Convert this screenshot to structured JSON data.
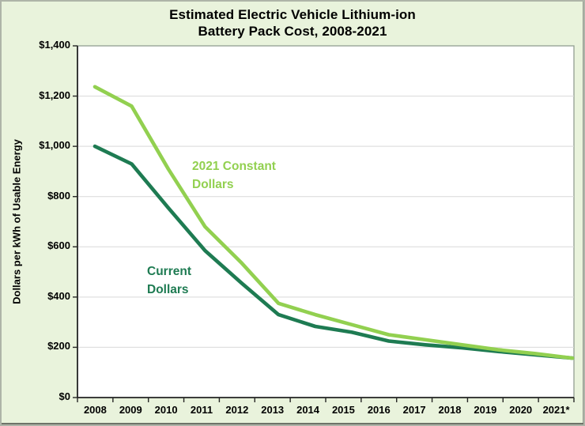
{
  "chart": {
    "title_line1": "Estimated Electric Vehicle Lithium-ion",
    "title_line2": "Battery Pack Cost, 2008-2021",
    "y_axis_label": "Dollars per kWh of Usable Energy"
  },
  "series_labels": {
    "constant": {
      "line1": "2021 Constant",
      "line2": "Dollars"
    },
    "current": {
      "line1": "Current",
      "line2": "Dollars"
    }
  },
  "colors": {
    "background": "#e9f3dc",
    "plot_background": "#ffffff",
    "plot_border": "#919e91",
    "gridline": "#d9d9d9",
    "axis": "#262626",
    "constant_series": "#92d050",
    "current_series": "#1e7b52",
    "text": "#000000"
  },
  "chart_data": {
    "type": "line",
    "title": "Estimated Electric Vehicle Lithium-ion Battery Pack Cost, 2008-2021",
    "xlabel": "",
    "ylabel": "Dollars per kWh of Usable Energy",
    "x": [
      2008,
      2009,
      2010,
      2011,
      2012,
      2013,
      2014,
      2015,
      2016,
      2017,
      2018,
      2019,
      2020,
      2021
    ],
    "x_tick_labels": [
      "2008",
      "2009",
      "2010",
      "2011",
      "2012",
      "2013",
      "2014",
      "2015",
      "2016",
      "2017",
      "2018",
      "2019",
      "2020",
      "2021*"
    ],
    "y_tick_labels": [
      "$1,400",
      "$1,200",
      "$1,000",
      "$800",
      "$600",
      "$400",
      "$200",
      "$0"
    ],
    "ylim": [
      0,
      1400
    ],
    "y_tick_step": 200,
    "grid": "horizontal",
    "legend": "in-plot colored text labels",
    "series": [
      {
        "name": "2021 Constant Dollars",
        "color": "#92d050",
        "values": [
          1237,
          1160,
          910,
          680,
          535,
          375,
          330,
          290,
          250,
          230,
          210,
          190,
          175,
          157
        ]
      },
      {
        "name": "Current Dollars",
        "color": "#1e7b52",
        "values": [
          1000,
          930,
          755,
          585,
          455,
          330,
          283,
          260,
          225,
          210,
          198,
          183,
          170,
          157
        ]
      }
    ]
  }
}
